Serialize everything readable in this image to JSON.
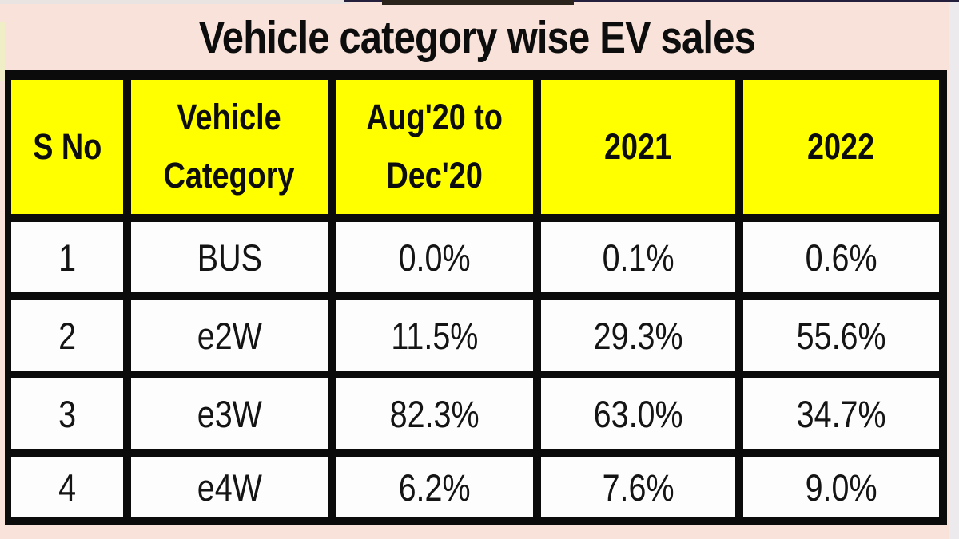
{
  "chart_data": {
    "type": "table",
    "title": "Vehicle category wise EV sales",
    "columns": [
      "S No",
      "Vehicle Category",
      "Aug'20 to Dec'20",
      "2021",
      "2022"
    ],
    "rows": [
      [
        "1",
        "BUS",
        "0.0%",
        "0.1%",
        "0.6%"
      ],
      [
        "2",
        "e2W",
        "11.5%",
        "29.3%",
        "55.6%"
      ],
      [
        "3",
        "e3W",
        "82.3%",
        "63.0%",
        "34.7%"
      ],
      [
        "4",
        "e4W",
        "6.2%",
        "7.6%",
        "9.0%"
      ]
    ]
  },
  "header_display": {
    "s_no": "S No",
    "category_line1": "Vehicle",
    "category_line2": "Category",
    "period_line1": "Aug'20 to",
    "period_line2": "Dec'20",
    "year_2021": "2021",
    "year_2022": "2022"
  },
  "colors": {
    "page_background": "#F8E2DA",
    "header_background": "#FFFF00",
    "cell_background": "#FDFDFD",
    "border": "#0B0B0B",
    "text": "#0D0D0D",
    "right_margin": "#EDEAEE",
    "top_navy_line": "#241F3C"
  }
}
